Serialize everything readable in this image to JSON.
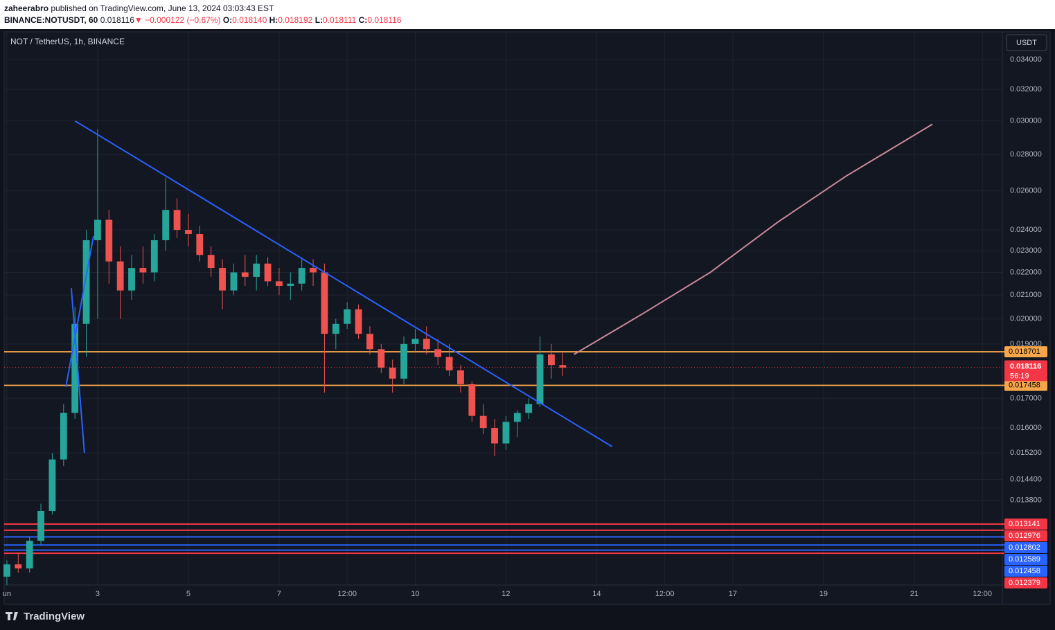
{
  "header": {
    "author": "zaheerabro",
    "published": "published on TradingView.com, June 13, 2024 03:03:43 EST",
    "symbol": "BINANCE:NOTUSDT, 60",
    "last": "0.018116",
    "change": "▼ −0.000122 (−0.67%)",
    "o_label": "O:",
    "o": "0.018140",
    "h_label": "H:",
    "h": "0.018192",
    "l_label": "L:",
    "l": "0.018111",
    "c_label": "C:",
    "c": "0.018116"
  },
  "legend": "NOT / TetherUS, 1h, BINANCE",
  "currency": "USDT",
  "brand": "TradingView",
  "chart_data": {
    "type": "candlestick",
    "log_scale": true,
    "grid": true,
    "xlim": [
      0.94,
      22.94
    ],
    "xticks": [
      {
        "value": 1,
        "label": "un"
      },
      3,
      5,
      7,
      {
        "value": 8.5,
        "label": "12:00"
      },
      10,
      12,
      14,
      {
        "value": 15.5,
        "label": "12:00"
      },
      17,
      19,
      21,
      {
        "value": 22.5,
        "label": "12:00"
      }
    ],
    "ylim": [
      0.0116,
      0.0346
    ],
    "yticks": [
      {
        "value": 0.034,
        "label": "0.034000"
      },
      {
        "value": 0.032,
        "label": "0.032000"
      },
      {
        "value": 0.03,
        "label": "0.030000"
      },
      {
        "value": 0.028,
        "label": "0.028000"
      },
      {
        "value": 0.026,
        "label": "0.026000"
      },
      {
        "value": 0.024,
        "label": "0.024000"
      },
      {
        "value": 0.023,
        "label": "0.023000"
      },
      {
        "value": 0.022,
        "label": "0.022000"
      },
      {
        "value": 0.021,
        "label": "0.021000"
      },
      {
        "value": 0.02,
        "label": "0.020000"
      },
      {
        "value": 0.019,
        "label": "0.019000"
      },
      {
        "value": 0.017,
        "label": "0.017000"
      },
      {
        "value": 0.016,
        "label": "0.016000"
      },
      {
        "value": 0.0152,
        "label": "0.015200"
      },
      {
        "value": 0.0144,
        "label": "0.014400"
      },
      {
        "value": 0.0138,
        "label": "0.013800"
      }
    ],
    "up_color": "#26a69a",
    "down_color": "#ef5350",
    "x": [
      1,
      1.25,
      1.5,
      1.75,
      2,
      2.25,
      2.5,
      2.75,
      3,
      3.25,
      3.5,
      3.75,
      4,
      4.25,
      4.5,
      4.75,
      5,
      5.25,
      5.5,
      5.75,
      6,
      6.25,
      6.5,
      6.75,
      7,
      7.25,
      7.5,
      7.75,
      8,
      8.25,
      8.5,
      8.75,
      9,
      9.25,
      9.5,
      9.75,
      10,
      10.25,
      10.5,
      10.75,
      11,
      11.25,
      11.5,
      11.75,
      12,
      12.25,
      12.5,
      12.75,
      13,
      13.25
    ],
    "open": [
      0.0118,
      0.0121,
      0.012,
      0.0127,
      0.0135,
      0.015,
      0.0165,
      0.0198,
      0.0235,
      0.0245,
      0.0225,
      0.0212,
      0.0222,
      0.022,
      0.0235,
      0.025,
      0.024,
      0.0238,
      0.0228,
      0.0222,
      0.0212,
      0.022,
      0.0218,
      0.0224,
      0.0216,
      0.0214,
      0.0215,
      0.0222,
      0.022,
      0.0194,
      0.0198,
      0.0204,
      0.0194,
      0.0188,
      0.0181,
      0.0177,
      0.019,
      0.0192,
      0.0188,
      0.0185,
      0.018,
      0.0175,
      0.0164,
      0.016,
      0.0155,
      0.0162,
      0.0165,
      0.0168,
      0.0186,
      0.0182
    ],
    "high": [
      0.0122,
      0.0124,
      0.0128,
      0.0137,
      0.0152,
      0.0168,
      0.0205,
      0.024,
      0.0295,
      0.025,
      0.0232,
      0.0228,
      0.0232,
      0.0238,
      0.0267,
      0.0256,
      0.0248,
      0.0242,
      0.0232,
      0.0226,
      0.0224,
      0.0228,
      0.0228,
      0.0227,
      0.0222,
      0.022,
      0.0226,
      0.0226,
      0.0224,
      0.02,
      0.0207,
      0.0206,
      0.0197,
      0.019,
      0.0184,
      0.0193,
      0.0196,
      0.0197,
      0.0192,
      0.019,
      0.0182,
      0.0176,
      0.0168,
      0.0163,
      0.0164,
      0.0166,
      0.017,
      0.0193,
      0.019,
      0.0187
    ],
    "low": [
      0.0116,
      0.0119,
      0.0119,
      0.0126,
      0.0134,
      0.0148,
      0.0163,
      0.0185,
      0.02,
      0.0215,
      0.02,
      0.0208,
      0.0215,
      0.0216,
      0.023,
      0.0236,
      0.0232,
      0.0225,
      0.0218,
      0.0204,
      0.021,
      0.0214,
      0.0212,
      0.0214,
      0.021,
      0.0208,
      0.0212,
      0.0214,
      0.0172,
      0.0188,
      0.0196,
      0.0192,
      0.0186,
      0.0179,
      0.0172,
      0.0175,
      0.0187,
      0.0186,
      0.0182,
      0.0178,
      0.0172,
      0.0162,
      0.0158,
      0.0151,
      0.0153,
      0.0157,
      0.0163,
      0.0167,
      0.0177,
      0.0178
    ],
    "close": [
      0.0121,
      0.012,
      0.0127,
      0.0135,
      0.015,
      0.0165,
      0.0198,
      0.0235,
      0.0245,
      0.0225,
      0.0212,
      0.0222,
      0.022,
      0.0235,
      0.025,
      0.024,
      0.0238,
      0.0228,
      0.0222,
      0.0212,
      0.022,
      0.0218,
      0.0224,
      0.0216,
      0.0214,
      0.0215,
      0.0222,
      0.022,
      0.0194,
      0.0198,
      0.0204,
      0.0194,
      0.0188,
      0.0181,
      0.0177,
      0.019,
      0.0192,
      0.0188,
      0.0185,
      0.018,
      0.0175,
      0.0164,
      0.016,
      0.0155,
      0.0162,
      0.0165,
      0.0168,
      0.0186,
      0.0182,
      0.0181
    ],
    "projection": {
      "color": "#c98a9a",
      "x": [
        13.5,
        15,
        16.5,
        18,
        19.5,
        21.4
      ],
      "values": [
        0.0186,
        0.0202,
        0.022,
        0.0244,
        0.0268,
        0.0298
      ]
    },
    "trendlines": [
      {
        "color": "#2962ff",
        "x": [
          2.5,
          14.34
        ],
        "values": [
          0.03,
          0.0154
        ]
      },
      {
        "color": "#2962ff",
        "x": [
          2.42,
          2.71
        ],
        "values": [
          0.0213,
          0.0152
        ]
      },
      {
        "color": "#2962ff",
        "x": [
          2.3,
          2.91
        ],
        "values": [
          0.0174,
          0.0237
        ]
      }
    ],
    "levels": [
      {
        "value": 0.018701,
        "color": "#f7a74a",
        "text": "#000000"
      },
      {
        "value": 0.017458,
        "color": "#f7a74a",
        "text": "#000000"
      },
      {
        "value": 0.013141,
        "color": "#f23645",
        "text": "#ffffff"
      },
      {
        "value": 0.012976,
        "color": "#f23645",
        "text": "#ffffff"
      },
      {
        "value": 0.012802,
        "color": "#2962ff",
        "text": "#ffffff"
      },
      {
        "value": 0.012589,
        "color": "#2962ff",
        "text": "#ffffff"
      },
      {
        "value": 0.012458,
        "color": "#2962ff",
        "text": "#ffffff"
      },
      {
        "value": 0.012379,
        "color": "#f23645",
        "text": "#ffffff"
      }
    ],
    "current": {
      "value": 0.018116,
      "countdown": "56:19",
      "color": "#f23645"
    }
  }
}
